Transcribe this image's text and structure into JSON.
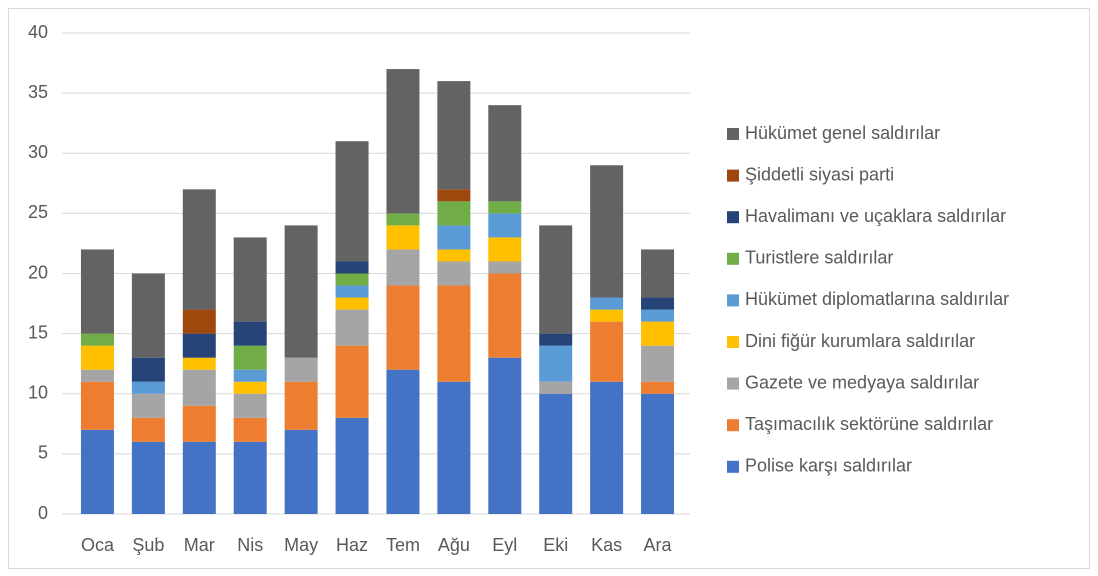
{
  "chart_data": {
    "type": "stacked_bar",
    "categories": [
      "Oca",
      "Şub",
      "Mar",
      "Nis",
      "May",
      "Haz",
      "Tem",
      "Ağu",
      "Eyl",
      "Eki",
      "Kas",
      "Ara"
    ],
    "series": [
      {
        "name": "Polise karşı saldırılar",
        "color": "#4472c4",
        "values": [
          7,
          6,
          6,
          6,
          7,
          8,
          12,
          11,
          13,
          10,
          11,
          10
        ]
      },
      {
        "name": "Taşımacılık sektörüne saldırılar",
        "color": "#ed7d31",
        "values": [
          4,
          2,
          3,
          2,
          4,
          6,
          7,
          8,
          7,
          0,
          5,
          1
        ]
      },
      {
        "name": "Gazete ve medyaya saldırılar",
        "color": "#a5a5a5",
        "values": [
          1,
          2,
          3,
          2,
          2,
          3,
          3,
          2,
          1,
          1,
          0,
          3
        ]
      },
      {
        "name": "Dini fiğür kurumlara saldırılar",
        "color": "#ffc000",
        "values": [
          2,
          0,
          1,
          1,
          0,
          1,
          2,
          1,
          2,
          0,
          1,
          2
        ]
      },
      {
        "name": "Hükümet diplomatlarına saldırılar",
        "color": "#5b9bd5",
        "values": [
          0,
          1,
          0,
          1,
          0,
          1,
          0,
          2,
          2,
          3,
          1,
          1
        ]
      },
      {
        "name": "Turistlere saldırılar",
        "color": "#70ad47",
        "values": [
          1,
          0,
          0,
          2,
          0,
          1,
          1,
          2,
          1,
          0,
          0,
          0
        ]
      },
      {
        "name": "Havalimanı ve uçaklara saldırılar",
        "color": "#264478",
        "values": [
          0,
          2,
          2,
          2,
          0,
          1,
          0,
          0,
          0,
          1,
          0,
          1
        ]
      },
      {
        "name": "Şiddetli siyasi parti",
        "color": "#9e480e",
        "values": [
          0,
          0,
          2,
          0,
          0,
          0,
          0,
          1,
          0,
          0,
          0,
          0
        ]
      },
      {
        "name": "Hükümet genel saldırılar",
        "color": "#636363",
        "values": [
          7,
          7,
          10,
          7,
          11,
          10,
          12,
          9,
          8,
          9,
          11,
          4
        ]
      }
    ],
    "ylim": [
      0,
      40
    ],
    "yticks": [
      0,
      5,
      10,
      15,
      20,
      25,
      30,
      35,
      40
    ],
    "grid": true,
    "legend": "right"
  }
}
